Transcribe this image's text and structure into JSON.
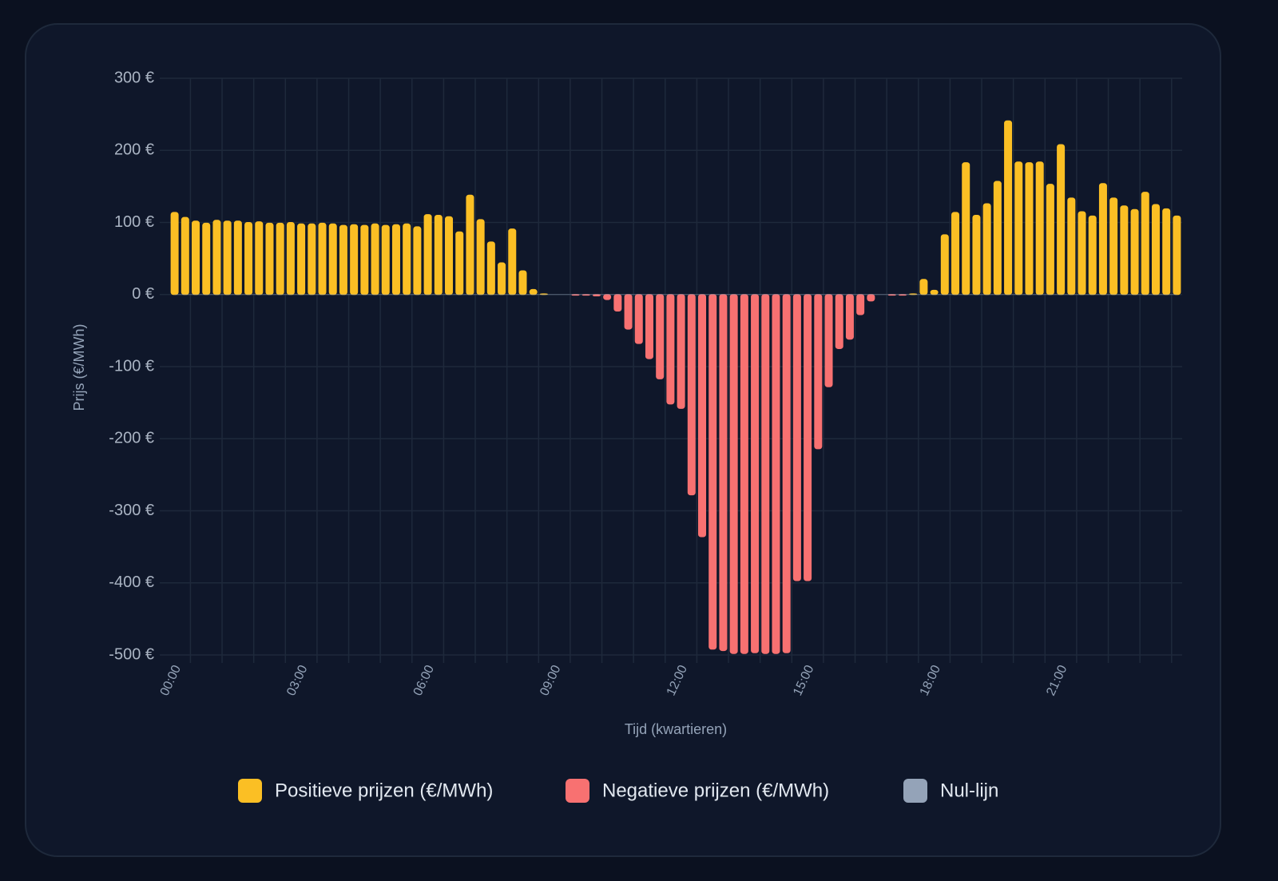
{
  "chart_data": {
    "type": "bar",
    "xlabel": "Tijd (kwartieren)",
    "ylabel": "Prijs (€/MWh)",
    "categories": [
      "00:00",
      null,
      null,
      null,
      null,
      null,
      null,
      null,
      null,
      null,
      null,
      null,
      "03:00",
      null,
      null,
      null,
      null,
      null,
      null,
      null,
      null,
      null,
      null,
      null,
      "06:00",
      null,
      null,
      null,
      null,
      null,
      null,
      null,
      null,
      null,
      null,
      null,
      "09:00",
      null,
      null,
      null,
      null,
      null,
      null,
      null,
      null,
      null,
      null,
      null,
      "12:00",
      null,
      null,
      null,
      null,
      null,
      null,
      null,
      null,
      null,
      null,
      null,
      "15:00",
      null,
      null,
      null,
      null,
      null,
      null,
      null,
      null,
      null,
      null,
      null,
      "18:00",
      null,
      null,
      null,
      null,
      null,
      null,
      null,
      null,
      null,
      null,
      null,
      "21:00",
      null,
      null,
      null,
      null,
      null,
      null,
      null,
      null,
      null,
      null,
      null
    ],
    "series": [
      {
        "name": "Positieve prijzen (€/MWh)",
        "color": "#fbbf24",
        "values": [
          114,
          107,
          102,
          99,
          103,
          102,
          102,
          100,
          101,
          99,
          99,
          100,
          98,
          98,
          99,
          98,
          96,
          97,
          96,
          98,
          96,
          97,
          98,
          94,
          111,
          110,
          108,
          87,
          138,
          104,
          73,
          44,
          91,
          33,
          7,
          1,
          0,
          0,
          null,
          null,
          null,
          null,
          null,
          null,
          null,
          null,
          null,
          null,
          null,
          null,
          null,
          null,
          null,
          null,
          null,
          null,
          null,
          null,
          null,
          null,
          null,
          null,
          null,
          null,
          null,
          null,
          null,
          0,
          null,
          null,
          1,
          21,
          6,
          83,
          114,
          183,
          110,
          126,
          157,
          241,
          184,
          183,
          184,
          153,
          208,
          134,
          115,
          109,
          154,
          134,
          123,
          118,
          142,
          125,
          119,
          109
        ]
      },
      {
        "name": "Negatieve prijzen (€/MWh)",
        "color": "#f87171",
        "values": [
          null,
          null,
          null,
          null,
          null,
          null,
          null,
          null,
          null,
          null,
          null,
          null,
          null,
          null,
          null,
          null,
          null,
          null,
          null,
          null,
          null,
          null,
          null,
          null,
          null,
          null,
          null,
          null,
          null,
          null,
          null,
          null,
          null,
          null,
          null,
          null,
          null,
          null,
          -1,
          -1,
          -2,
          -7,
          -23,
          -48,
          -68,
          -89,
          -117,
          -152,
          -158,
          -278,
          -336,
          -492,
          -494,
          -498,
          -498,
          -497,
          -498,
          -498,
          -497,
          -397,
          -397,
          -214,
          -128,
          -75,
          -62,
          -28,
          -9,
          null,
          -1,
          -1,
          null,
          null,
          null,
          null,
          null,
          null,
          null,
          null,
          null,
          null,
          null,
          null,
          null,
          null,
          null,
          null,
          null,
          null,
          null,
          null,
          null,
          null,
          null,
          null,
          null,
          null
        ]
      },
      {
        "name": "Nul-lijn",
        "color": "#94a3b8",
        "type": "line",
        "values": [
          0,
          0,
          0,
          0,
          0,
          0,
          0,
          0,
          0,
          0,
          0,
          0,
          0,
          0,
          0,
          0,
          0,
          0,
          0,
          0,
          0,
          0,
          0,
          0,
          0,
          0,
          0,
          0,
          0,
          0,
          0,
          0,
          0,
          0,
          0,
          0,
          0,
          0,
          0,
          0,
          0,
          0,
          0,
          0,
          0,
          0,
          0,
          0,
          0,
          0,
          0,
          0,
          0,
          0,
          0,
          0,
          0,
          0,
          0,
          0,
          0,
          0,
          0,
          0,
          0,
          0,
          0,
          0,
          0,
          0,
          0,
          0,
          0,
          0,
          0,
          0,
          0,
          0,
          0,
          0,
          0,
          0,
          0,
          0,
          0,
          0,
          0,
          0,
          0,
          0,
          0,
          0,
          0,
          0,
          0,
          0
        ]
      }
    ],
    "ylim": [
      -500,
      300
    ],
    "yticks": [
      {
        "value": -500,
        "label": "-500 €"
      },
      {
        "value": -400,
        "label": "-400 €"
      },
      {
        "value": -300,
        "label": "-300 €"
      },
      {
        "value": -200,
        "label": "-200 €"
      },
      {
        "value": -100,
        "label": "-100 €"
      },
      {
        "value": 0,
        "label": "0 €"
      },
      {
        "value": 100,
        "label": "100 €"
      },
      {
        "value": 200,
        "label": "200 €"
      },
      {
        "value": 300,
        "label": "300 €"
      }
    ],
    "grid": true,
    "legend": "bottom"
  }
}
